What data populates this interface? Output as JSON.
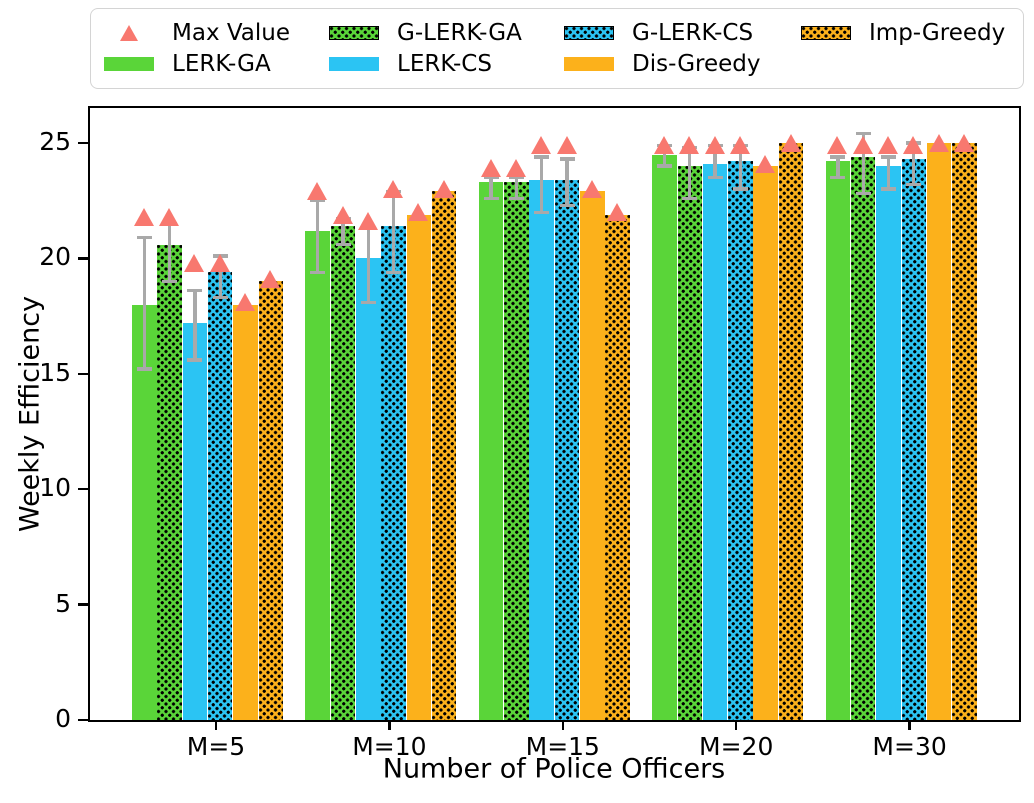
{
  "colors": {
    "green": "#5ad539",
    "cyan": "#2bc4f3",
    "orange": "#fcb11b",
    "max_marker": "#f8786f",
    "error_bar": "#a9a9a9",
    "axis": "#000000"
  },
  "legend": {
    "items": [
      {
        "label": "Max Value",
        "marker": "triangle",
        "color": "#f8786f"
      },
      {
        "label": "G-LERK-GA",
        "marker": "hatched",
        "color": "#5ad539"
      },
      {
        "label": "G-LERK-CS",
        "marker": "hatched",
        "color": "#2bc4f3"
      },
      {
        "label": "Imp-Greedy",
        "marker": "hatched",
        "color": "#fcb11b"
      },
      {
        "label": "LERK-GA",
        "marker": "solid",
        "color": "#5ad539"
      },
      {
        "label": "LERK-CS",
        "marker": "solid",
        "color": "#2bc4f3"
      },
      {
        "label": "Dis-Greedy",
        "marker": "solid",
        "color": "#fcb11b"
      }
    ]
  },
  "axes": {
    "ylabel": "Weekly Efficiency",
    "xlabel": "Number of Police Officers",
    "yticks": [
      "0",
      "5",
      "10",
      "15",
      "20",
      "25"
    ],
    "ylim": [
      0,
      26.7
    ],
    "grid": false,
    "legend_position": "top"
  },
  "chart_data": {
    "type": "bar",
    "title": "",
    "xlabel": "Number of Police Officers",
    "ylabel": "Weekly Efficiency",
    "ylim": [
      0,
      26.7
    ],
    "categories": [
      "M=5",
      "M=10",
      "M=15",
      "M=20",
      "M=30"
    ],
    "max_marker_legend": "Max Value",
    "series": [
      {
        "name": "LERK-GA",
        "color": "#5ad539",
        "hatch": false,
        "values": [
          18.0,
          21.2,
          23.3,
          24.5,
          24.2
        ],
        "err_low": [
          15.2,
          19.4,
          22.6,
          24.0,
          23.5
        ],
        "err_high": [
          20.9,
          22.5,
          23.5,
          24.9,
          24.4
        ],
        "max": [
          21.8,
          22.9,
          23.9,
          24.9,
          24.9
        ]
      },
      {
        "name": "G-LERK-GA",
        "color": "#5ad539",
        "hatch": true,
        "values": [
          20.6,
          21.4,
          23.3,
          24.0,
          24.4
        ],
        "err_low": [
          19.0,
          20.6,
          22.6,
          22.6,
          22.8
        ],
        "err_high": [
          21.5,
          21.7,
          23.5,
          24.8,
          25.4
        ],
        "max": [
          21.8,
          21.9,
          23.9,
          24.9,
          24.9
        ]
      },
      {
        "name": "LERK-CS",
        "color": "#2bc4f3",
        "hatch": false,
        "values": [
          17.2,
          20.0,
          23.4,
          24.1,
          24.0
        ],
        "err_low": [
          15.6,
          18.1,
          22.0,
          23.5,
          23.0
        ],
        "err_high": [
          18.6,
          21.3,
          24.4,
          24.9,
          24.4
        ],
        "max": [
          19.8,
          21.6,
          24.9,
          24.9,
          24.9
        ]
      },
      {
        "name": "G-LERK-CS",
        "color": "#2bc4f3",
        "hatch": true,
        "values": [
          19.4,
          21.4,
          23.4,
          24.2,
          24.3
        ],
        "err_low": [
          18.3,
          19.4,
          22.3,
          23.0,
          23.2
        ],
        "err_high": [
          20.1,
          22.9,
          24.3,
          24.9,
          25.0
        ],
        "max": [
          19.8,
          23.0,
          24.9,
          24.9,
          24.9
        ]
      },
      {
        "name": "Dis-Greedy",
        "color": "#fcb11b",
        "hatch": false,
        "values": [
          18.0,
          21.9,
          22.9,
          24.0,
          25.0
        ],
        "err_low": null,
        "err_high": null,
        "max": [
          18.1,
          22.0,
          23.0,
          24.1,
          25.0
        ]
      },
      {
        "name": "Imp-Greedy",
        "color": "#fcb11b",
        "hatch": true,
        "values": [
          19.0,
          22.9,
          21.9,
          25.0,
          25.0
        ],
        "err_low": null,
        "err_high": null,
        "max": [
          19.1,
          23.0,
          22.0,
          25.0,
          25.0
        ]
      }
    ]
  }
}
